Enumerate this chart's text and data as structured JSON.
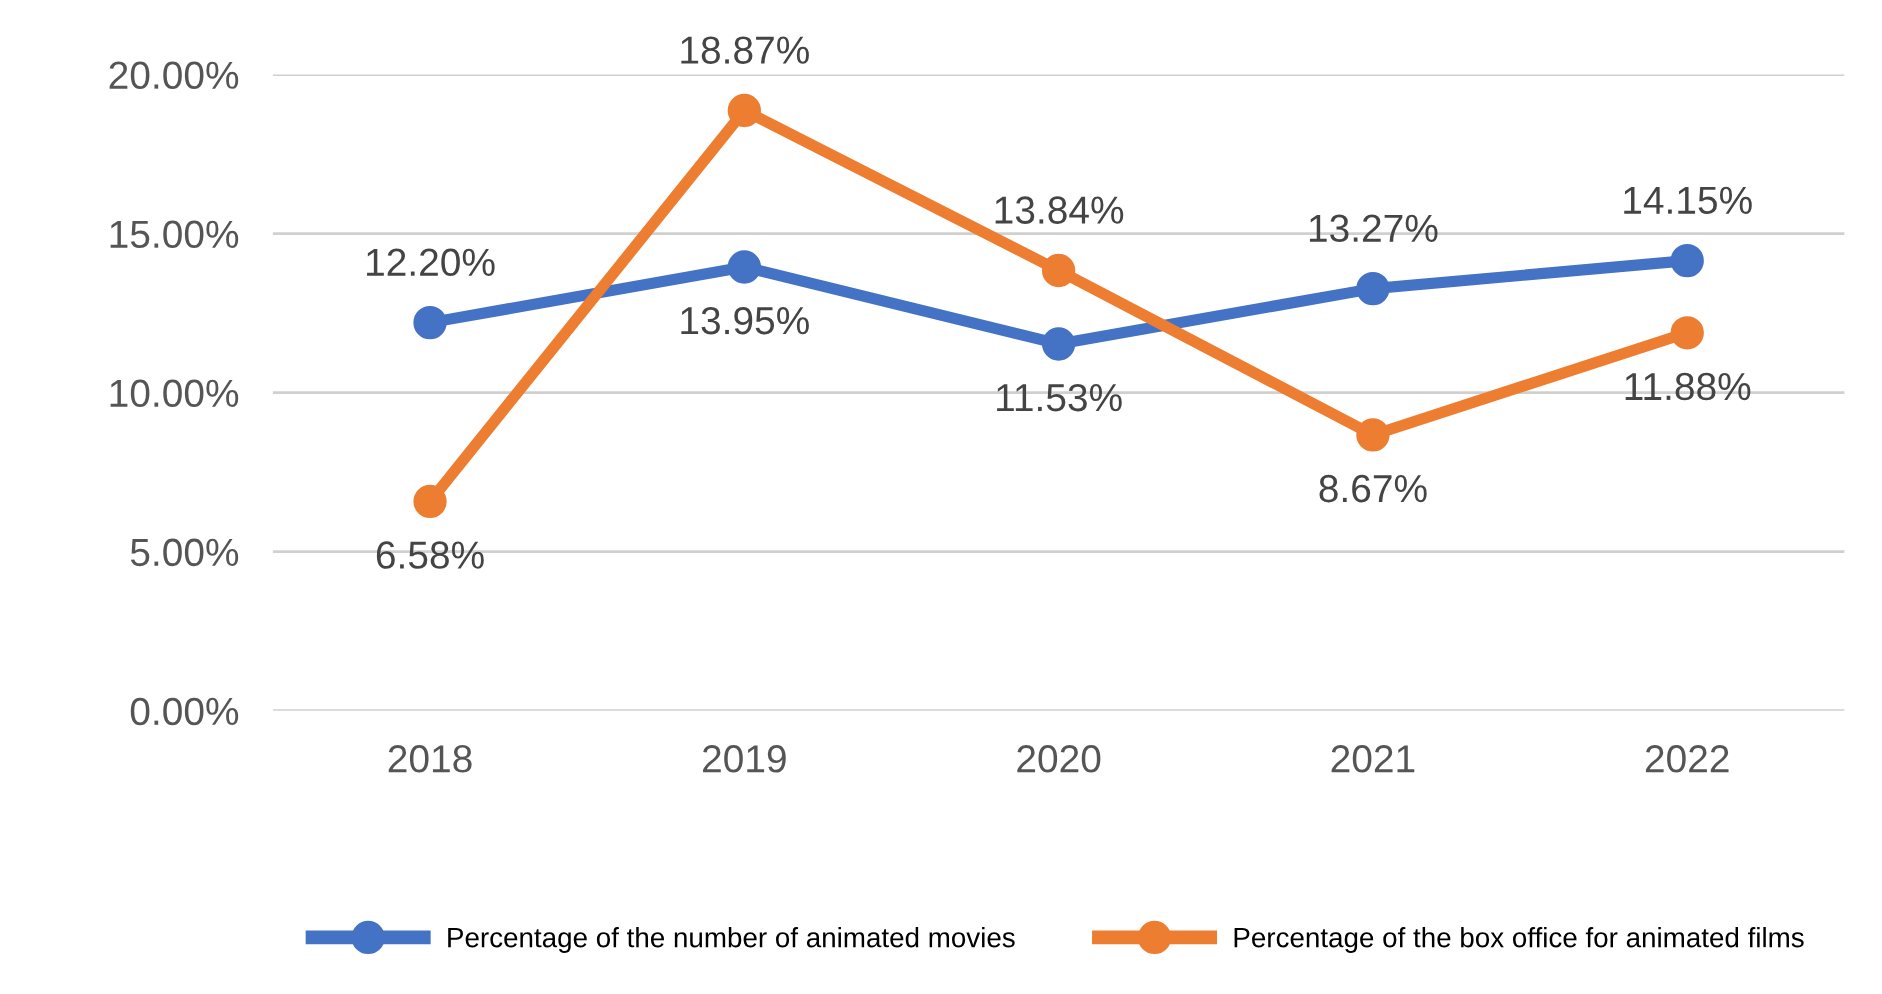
{
  "chart_data": {
    "type": "line",
    "categories": [
      "2018",
      "2019",
      "2020",
      "2021",
      "2022"
    ],
    "series": [
      {
        "name": "Percentage of the number of animated movies",
        "color": "#4472c4",
        "values": [
          12.2,
          13.95,
          11.53,
          13.27,
          14.15
        ],
        "value_labels": [
          "12.20%",
          "13.95%",
          "11.53%",
          "13.27%",
          "14.15%"
        ]
      },
      {
        "name": "Percentage of the box office for animated films",
        "color": "#ed7d31",
        "values": [
          6.58,
          18.87,
          13.84,
          8.67,
          11.88
        ],
        "value_labels": [
          "6.58%",
          "18.87%",
          "13.84%",
          "8.67%",
          "11.88%"
        ]
      }
    ],
    "ylim": [
      0,
      20
    ],
    "yticks": [
      {
        "value": 0,
        "label": "0.00%"
      },
      {
        "value": 5,
        "label": "5.00%"
      },
      {
        "value": 10,
        "label": "10.00%"
      },
      {
        "value": 15,
        "label": "15.00%"
      },
      {
        "value": 20,
        "label": "20.00%"
      }
    ],
    "grid": "y",
    "legend": "bottom",
    "marker": "circle",
    "line_style": "solid"
  }
}
